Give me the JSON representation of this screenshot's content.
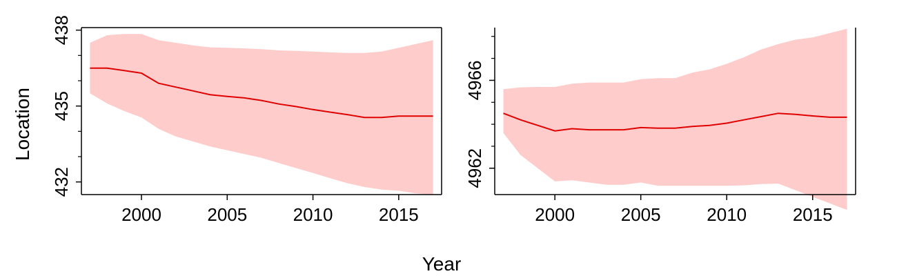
{
  "figure": {
    "xlabel": "Year",
    "ylabel": "Location"
  },
  "chart_data": [
    {
      "type": "line",
      "panel": "left",
      "xlim": [
        1996.5,
        2017.5
      ],
      "ylim": [
        431.5,
        438.1
      ],
      "xticks": [
        2000,
        2005,
        2010,
        2015
      ],
      "xtick_labels": [
        "2000",
        "2005",
        "2010",
        "2015"
      ],
      "yticks_major": [
        432,
        435,
        438
      ],
      "ytick_labels": [
        "432",
        "435",
        "438"
      ],
      "yticks_minor": [
        433,
        434,
        436,
        437
      ],
      "grid": false,
      "series": [
        {
          "kind": "mean",
          "color": "#e00000",
          "x": [
            1997,
            1998,
            1999,
            2000,
            2001,
            2002,
            2003,
            2004,
            2005,
            2006,
            2007,
            2008,
            2009,
            2010,
            2011,
            2012,
            2013,
            2014,
            2015,
            2016,
            2017
          ],
          "y": [
            436.5,
            436.5,
            436.4,
            436.3,
            435.9,
            435.75,
            435.6,
            435.45,
            435.38,
            435.32,
            435.22,
            435.08,
            434.98,
            434.86,
            434.76,
            434.66,
            434.55,
            434.55,
            434.6,
            434.6,
            434.6
          ]
        },
        {
          "kind": "ribbon",
          "color": "#ffcccc",
          "x": [
            1997,
            1998,
            1999,
            2000,
            2001,
            2002,
            2003,
            2004,
            2005,
            2006,
            2007,
            2008,
            2009,
            2010,
            2011,
            2012,
            2013,
            2014,
            2015,
            2016,
            2017
          ],
          "lower": [
            435.5,
            435.1,
            434.8,
            434.55,
            434.1,
            433.8,
            433.6,
            433.4,
            433.25,
            433.1,
            432.95,
            432.75,
            432.55,
            432.35,
            432.15,
            431.95,
            431.8,
            431.7,
            431.65,
            431.55,
            431.5
          ],
          "upper": [
            437.5,
            437.8,
            437.85,
            437.85,
            437.6,
            437.5,
            437.4,
            437.32,
            437.3,
            437.28,
            437.25,
            437.2,
            437.18,
            437.15,
            437.12,
            437.1,
            437.1,
            437.15,
            437.3,
            437.45,
            437.6
          ]
        }
      ]
    },
    {
      "type": "line",
      "panel": "right",
      "xlim": [
        1996.5,
        2017.5
      ],
      "ylim": [
        4960.8,
        4968.4
      ],
      "xticks": [
        2000,
        2005,
        2010,
        2015
      ],
      "xtick_labels": [
        "2000",
        "2005",
        "2010",
        "2015"
      ],
      "yticks_major": [
        4962,
        4966
      ],
      "ytick_labels": [
        "4962",
        "4966"
      ],
      "yticks_minor": [
        4963,
        4964,
        4965,
        4967,
        4968
      ],
      "grid": false,
      "series": [
        {
          "kind": "mean",
          "color": "#e00000",
          "x": [
            1997,
            1998,
            1999,
            2000,
            2001,
            2002,
            2003,
            2004,
            2005,
            2006,
            2007,
            2008,
            2009,
            2010,
            2011,
            2012,
            2013,
            2014,
            2015,
            2016,
            2017
          ],
          "y": [
            4964.5,
            4964.2,
            4963.95,
            4963.7,
            4963.8,
            4963.75,
            4963.75,
            4963.75,
            4963.85,
            4963.82,
            4963.82,
            4963.9,
            4963.95,
            4964.05,
            4964.2,
            4964.35,
            4964.5,
            4964.45,
            4964.38,
            4964.32,
            4964.32
          ]
        },
        {
          "kind": "ribbon",
          "color": "#ffcccc",
          "x": [
            1997,
            1998,
            1999,
            2000,
            2001,
            2002,
            2003,
            2004,
            2005,
            2006,
            2007,
            2008,
            2009,
            2010,
            2011,
            2012,
            2013,
            2014,
            2015,
            2016,
            2017
          ],
          "lower": [
            4963.6,
            4962.6,
            4962.0,
            4961.4,
            4961.45,
            4961.35,
            4961.25,
            4961.25,
            4961.35,
            4961.2,
            4961.2,
            4961.2,
            4961.2,
            4961.2,
            4961.22,
            4961.28,
            4961.3,
            4961.0,
            4960.7,
            4960.4,
            4960.1
          ],
          "upper": [
            4965.6,
            4965.68,
            4965.7,
            4965.7,
            4965.85,
            4965.9,
            4965.9,
            4965.9,
            4966.05,
            4966.1,
            4966.1,
            4966.35,
            4966.5,
            4966.75,
            4967.05,
            4967.4,
            4967.65,
            4967.85,
            4967.95,
            4968.15,
            4968.35
          ]
        }
      ]
    }
  ]
}
